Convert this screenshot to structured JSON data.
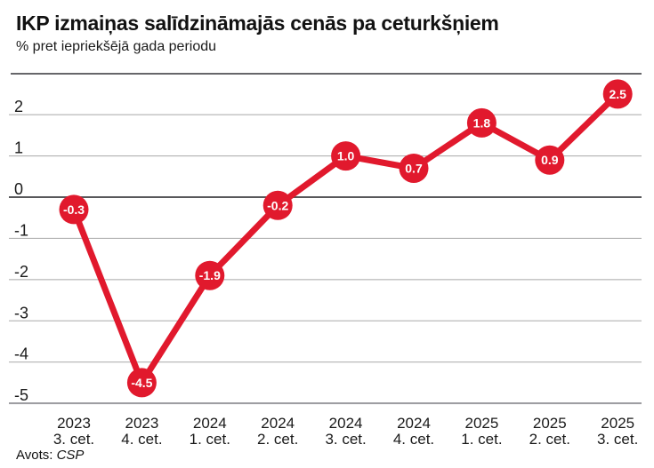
{
  "chart_data": {
    "type": "line",
    "title": "IKP izmaiņas salīdzināmajās cenās pa ceturkšņiem",
    "subtitle": "% pret iepriekšējā gada periodu",
    "categories": [
      {
        "year": "2023",
        "quarter": "3. cet."
      },
      {
        "year": "2023",
        "quarter": "4. cet."
      },
      {
        "year": "2024",
        "quarter": "1. cet."
      },
      {
        "year": "2024",
        "quarter": "2. cet."
      },
      {
        "year": "2024",
        "quarter": "3. cet."
      },
      {
        "year": "2024",
        "quarter": "4. cet."
      },
      {
        "year": "2025",
        "quarter": "1. cet."
      },
      {
        "year": "2025",
        "quarter": "2. cet."
      },
      {
        "year": "2025",
        "quarter": "3. cet."
      }
    ],
    "values": [
      -0.3,
      -4.5,
      -1.9,
      -0.2,
      1.0,
      0.7,
      1.8,
      0.9,
      2.5
    ],
    "point_labels": [
      "-0.3",
      "-4.5",
      "-1.9",
      "-0.2",
      "1.0",
      "0.7",
      "1.8",
      "0.9",
      "2.5"
    ],
    "yticks": [
      2,
      1,
      0,
      -1,
      -2,
      -3,
      -4,
      -5
    ],
    "ylim": [
      -5,
      2.9
    ],
    "xlabel": "",
    "ylabel": "",
    "grid": true,
    "legend_position": "none",
    "source_prefix": "Avots:",
    "source_name": "CSP"
  },
  "colors": {
    "accent": "#e1192d",
    "grid": "#a8a8a8",
    "zero_line": "#58585a",
    "axis_bottom": "#9c9ca0",
    "top_rule": "#66666a",
    "text": "#1a1a1a",
    "point_label": "#ffffff"
  }
}
